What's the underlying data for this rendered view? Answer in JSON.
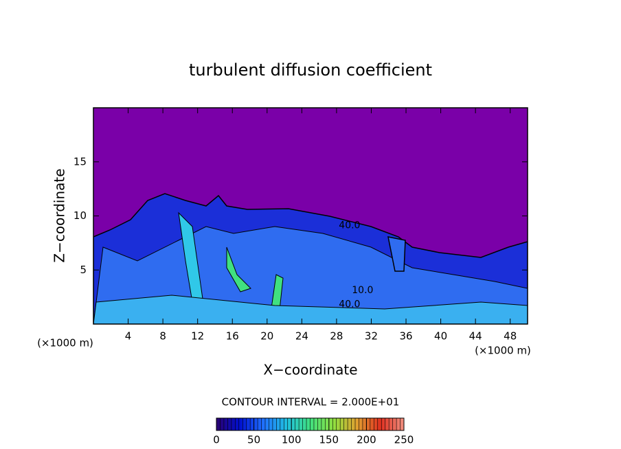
{
  "chart_data": {
    "type": "contour",
    "title": "turbulent diffusion coefficient",
    "xlabel": "X−coordinate",
    "ylabel": "Z−coordinate",
    "x_unit_left": "(×1000 m)",
    "x_unit_right": "(×1000 m)",
    "xlim": [
      0,
      50
    ],
    "xticks": [
      4,
      8,
      12,
      16,
      20,
      24,
      28,
      32,
      36,
      40,
      44,
      48
    ],
    "ylim": [
      0,
      20
    ],
    "yticks": [
      5,
      10,
      15
    ],
    "contour_interval": "CONTOUR INTERVAL = 2.000E+01",
    "contour_labels": [
      {
        "text": "40.0",
        "x": 29.5,
        "z": 9.1
      },
      {
        "text": "10.0",
        "x": 31,
        "z": 3.1
      },
      {
        "text": "40.0",
        "x": 29.5,
        "z": 1.8
      }
    ],
    "colorbar": {
      "lim": [
        0,
        250
      ],
      "ticks": [
        0,
        50,
        100,
        150,
        200,
        250
      ],
      "colors": [
        "#2a0070",
        "#0010d0",
        "#2070ff",
        "#20c0e0",
        "#40e080",
        "#90e040",
        "#e0a030",
        "#e03020",
        "#f09080"
      ]
    },
    "background_color": "#7a00a8"
  }
}
